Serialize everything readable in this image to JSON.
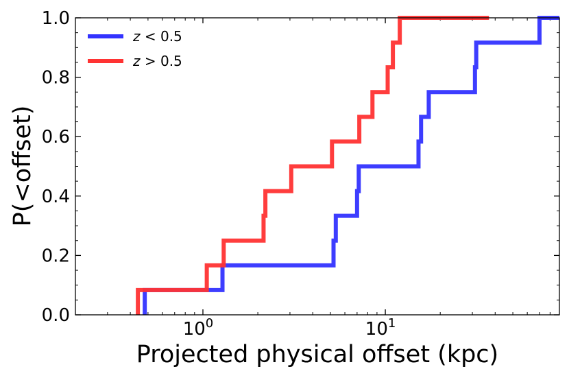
{
  "chart_data": {
    "type": "line",
    "step": true,
    "xscale": "log",
    "xlim": [
      0.2,
      90
    ],
    "ylim": [
      0.0,
      1.0
    ],
    "xlabel": "Projected physical offset (kpc)",
    "ylabel": "P(<offset)",
    "xticks": [
      {
        "value": 1,
        "base": "10",
        "exp": "0"
      },
      {
        "value": 10,
        "base": "10",
        "exp": "1"
      }
    ],
    "yticks": [
      {
        "value": 0.0,
        "label": "0.0"
      },
      {
        "value": 0.2,
        "label": "0.2"
      },
      {
        "value": 0.4,
        "label": "0.4"
      },
      {
        "value": 0.6,
        "label": "0.6"
      },
      {
        "value": 0.8,
        "label": "0.8"
      },
      {
        "value": 1.0,
        "label": "1.0"
      }
    ],
    "legend_position": "top-left",
    "series": [
      {
        "name": "z < 0.5",
        "legend_var": "z",
        "legend_rel": " < 0.5",
        "color": "#3333ff",
        "x": [
          0.48,
          1.28,
          5.2,
          5.35,
          7.0,
          7.15,
          15.2,
          15.7,
          17.3,
          31.0,
          31.5,
          70.0,
          90.0
        ],
        "y": [
          0.0833,
          0.1667,
          0.25,
          0.3333,
          0.4167,
          0.5,
          0.5833,
          0.6667,
          0.75,
          0.8333,
          0.9167,
          1.0,
          1.0
        ]
      },
      {
        "name": "z > 0.5",
        "legend_var": "z",
        "legend_rel": " > 0.5",
        "color": "#ff3333",
        "x": [
          0.44,
          1.05,
          1.3,
          2.15,
          2.2,
          3.05,
          5.1,
          7.2,
          8.5,
          10.3,
          11.0,
          11.6,
          12.0,
          37.0
        ],
        "y": [
          0.0833,
          0.1667,
          0.25,
          0.3333,
          0.4167,
          0.5,
          0.5833,
          0.6667,
          0.75,
          0.8333,
          0.9167,
          0.9167,
          1.0,
          1.0
        ]
      }
    ]
  }
}
